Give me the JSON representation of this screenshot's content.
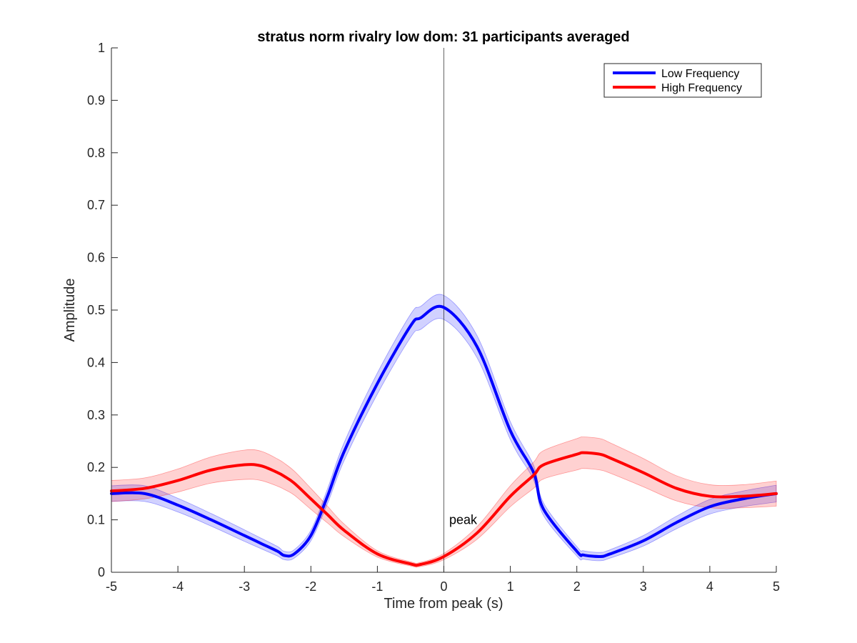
{
  "chart_data": {
    "type": "line",
    "title": "stratus norm rivalry low dom: 31 participants averaged",
    "xlabel": "Time from peak (s)",
    "ylabel": "Amplitude",
    "xlim": [
      -5,
      5
    ],
    "ylim": [
      0,
      1
    ],
    "xticks": [
      "-5",
      "-4",
      "-3",
      "-2",
      "-1",
      "0",
      "1",
      "2",
      "3",
      "4",
      "5"
    ],
    "yticks": [
      "0",
      "0.1",
      "0.2",
      "0.3",
      "0.4",
      "0.5",
      "0.6",
      "0.7",
      "0.8",
      "0.9",
      "1"
    ],
    "grid": false,
    "legend_position": "top-right",
    "vertical_line_x": 0,
    "annotation": {
      "text": "peak",
      "x": 0.08,
      "y": 0.1
    },
    "x": [
      -5,
      -4.5,
      -4,
      -3.5,
      -3,
      -2.75,
      -2.5,
      -2.4,
      -2.25,
      -2,
      -1.75,
      -1.5,
      -1,
      -0.5,
      -0.35,
      0,
      0.5,
      1,
      1.35,
      1.5,
      2,
      2.1,
      2.35,
      2.5,
      3,
      3.5,
      4,
      4.5,
      5
    ],
    "series": [
      {
        "name": "Low Frequency",
        "color": "#0000ff",
        "values": [
          0.15,
          0.15,
          0.128,
          0.1,
          0.07,
          0.055,
          0.04,
          0.032,
          0.035,
          0.07,
          0.145,
          0.23,
          0.36,
          0.47,
          0.485,
          0.505,
          0.43,
          0.27,
          0.19,
          0.12,
          0.04,
          0.033,
          0.03,
          0.035,
          0.06,
          0.095,
          0.125,
          0.14,
          0.15
        ],
        "band_width": [
          0.015,
          0.015,
          0.013,
          0.012,
          0.011,
          0.01,
          0.009,
          0.008,
          0.008,
          0.01,
          0.014,
          0.017,
          0.02,
          0.022,
          0.022,
          0.023,
          0.021,
          0.017,
          0.014,
          0.012,
          0.009,
          0.008,
          0.008,
          0.008,
          0.01,
          0.012,
          0.014,
          0.015,
          0.016
        ]
      },
      {
        "name": "High Frequency",
        "color": "#ff0000",
        "values": [
          0.155,
          0.16,
          0.175,
          0.195,
          0.205,
          0.203,
          0.19,
          0.183,
          0.17,
          0.14,
          0.11,
          0.08,
          0.035,
          0.016,
          0.015,
          0.03,
          0.075,
          0.145,
          0.185,
          0.205,
          0.225,
          0.228,
          0.225,
          0.218,
          0.19,
          0.16,
          0.145,
          0.145,
          0.15
        ],
        "band_width": [
          0.02,
          0.02,
          0.022,
          0.025,
          0.028,
          0.028,
          0.026,
          0.025,
          0.023,
          0.02,
          0.016,
          0.012,
          0.006,
          0.004,
          0.004,
          0.006,
          0.012,
          0.02,
          0.025,
          0.027,
          0.03,
          0.03,
          0.03,
          0.029,
          0.027,
          0.024,
          0.022,
          0.022,
          0.024
        ]
      }
    ]
  }
}
